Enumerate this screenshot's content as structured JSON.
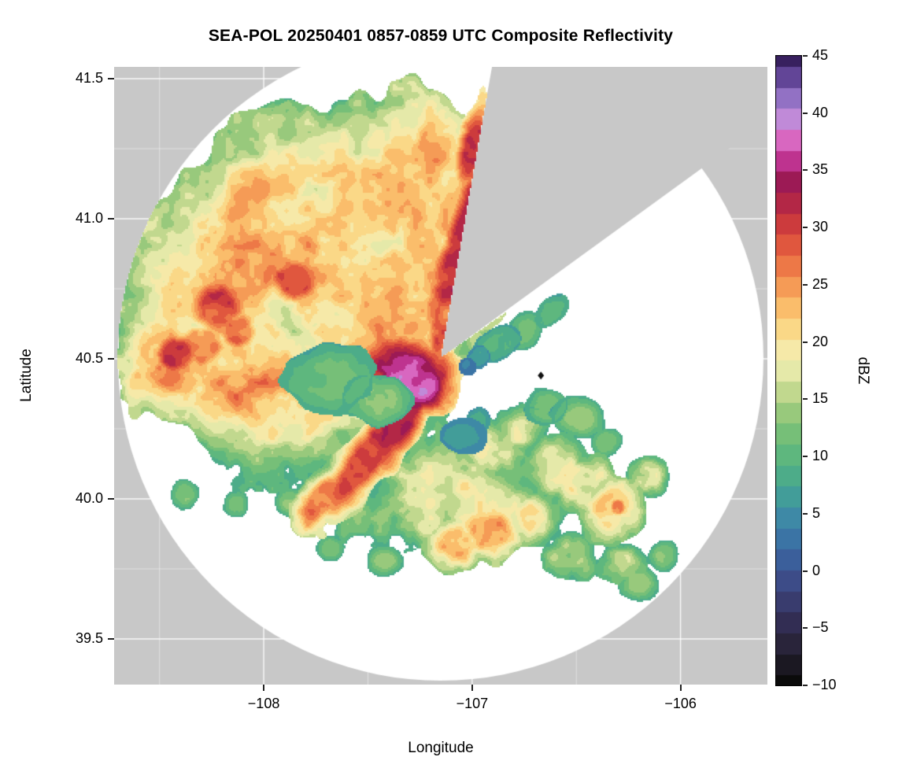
{
  "figure": {
    "title": "SEA-POL 20250401 0857-0859 UTC Composite Reflectivity",
    "background": "#ffffff"
  },
  "axes": {
    "x": {
      "label": "Longitude",
      "ticks": [
        {
          "value": -108,
          "label": "−108"
        },
        {
          "value": -107,
          "label": "−107"
        },
        {
          "value": -106,
          "label": "−106"
        }
      ]
    },
    "y": {
      "label": "Latitude",
      "ticks": [
        {
          "value": 41.5,
          "label": "41.5"
        },
        {
          "value": 41.0,
          "label": "41.0"
        },
        {
          "value": 40.5,
          "label": "40.5"
        },
        {
          "value": 40.0,
          "label": "40.0"
        },
        {
          "value": 39.5,
          "label": "39.5"
        }
      ]
    }
  },
  "colorbar": {
    "label": "dBZ",
    "min": -10,
    "max": 45,
    "ticks": [
      {
        "value": 45,
        "label": "45"
      },
      {
        "value": 40,
        "label": "40"
      },
      {
        "value": 35,
        "label": "35"
      },
      {
        "value": 30,
        "label": "30"
      },
      {
        "value": 25,
        "label": "25"
      },
      {
        "value": 20,
        "label": "20"
      },
      {
        "value": 15,
        "label": "15"
      },
      {
        "value": 10,
        "label": "10"
      },
      {
        "value": 5,
        "label": "5"
      },
      {
        "value": 0,
        "label": "0"
      },
      {
        "value": -5,
        "label": "−5"
      },
      {
        "value": -10,
        "label": "−10"
      }
    ]
  },
  "chart_data": {
    "type": "heatmap",
    "title": "SEA-POL 20250401 0857-0859 UTC Composite Reflectivity",
    "xlabel": "Longitude",
    "ylabel": "Latitude",
    "units": "dBZ",
    "xlim": [
      -108.718,
      -105.583
    ],
    "ylim": [
      39.337,
      41.542
    ],
    "panel_bg": "#c8c8c8",
    "nodata_color": "#ffffff",
    "grid": {
      "major_color": "#ffffff",
      "minor_color": "#ffffff"
    },
    "radar": {
      "center_lon": -107.151,
      "center_lat": 40.503,
      "radius_deg_lat": 1.152,
      "blocked_sector_azimuth_deg": [
        10,
        55
      ]
    },
    "colormap": {
      "units": "dBZ",
      "quantize_step": 1.8333,
      "stops": [
        [
          -10,
          "#0b0b0b"
        ],
        [
          -7,
          "#262131"
        ],
        [
          -4,
          "#35305a"
        ],
        [
          -1,
          "#3d4a86"
        ],
        [
          2,
          "#3a6aa5"
        ],
        [
          5,
          "#3e8da6"
        ],
        [
          7,
          "#44a394"
        ],
        [
          9,
          "#52b184"
        ],
        [
          11,
          "#66bb79"
        ],
        [
          13,
          "#86c377"
        ],
        [
          15,
          "#b2d184"
        ],
        [
          17,
          "#dfe6a2"
        ],
        [
          18.5,
          "#f2efb6"
        ],
        [
          20,
          "#f9e49c"
        ],
        [
          22,
          "#fbcf78"
        ],
        [
          24,
          "#f8ab5e"
        ],
        [
          26,
          "#f1854b"
        ],
        [
          28,
          "#e55f3e"
        ],
        [
          30,
          "#d03f3c"
        ],
        [
          32,
          "#b52845"
        ],
        [
          34,
          "#9c1a55"
        ],
        [
          35.5,
          "#b62b85"
        ],
        [
          37,
          "#d94fb0"
        ],
        [
          38,
          "#d773c8"
        ],
        [
          39.5,
          "#c08ad8"
        ],
        [
          41,
          "#9b79cb"
        ],
        [
          42.5,
          "#7457ab"
        ],
        [
          44,
          "#4b2f7f"
        ],
        [
          45,
          "#38205f"
        ]
      ]
    },
    "cell_format": "[lon, lat, sigma_lon_deg, sigma_lat_deg, rotation_deg, peak_dbz, edge_cut(optional; >=0.4 marks low/carve cell)]",
    "cells": [
      [
        -108.25,
        40.72,
        0.3,
        0.26,
        0,
        23
      ],
      [
        -107.95,
        40.95,
        0.34,
        0.26,
        30,
        22
      ],
      [
        -107.55,
        41.05,
        0.3,
        0.24,
        20,
        22
      ],
      [
        -107.3,
        41.15,
        0.22,
        0.2,
        0,
        23
      ],
      [
        -107.15,
        40.9,
        0.2,
        0.28,
        0,
        24
      ],
      [
        -107.6,
        40.7,
        0.33,
        0.26,
        0,
        21
      ],
      [
        -108.1,
        40.5,
        0.28,
        0.2,
        0,
        23
      ],
      [
        -108.45,
        40.5,
        0.17,
        0.13,
        0,
        25
      ],
      [
        -107.9,
        40.32,
        0.28,
        0.18,
        0,
        19
      ],
      [
        -107.5,
        40.45,
        0.28,
        0.2,
        0,
        18
      ],
      [
        -107.35,
        40.72,
        0.24,
        0.2,
        0,
        24
      ],
      [
        -108.0,
        41.12,
        0.17,
        0.11,
        25,
        18
      ],
      [
        -108.35,
        40.9,
        0.14,
        0.1,
        0,
        17
      ],
      [
        -107.04,
        40.92,
        0.32,
        0.075,
        65,
        33
      ],
      [
        -106.93,
        41.1,
        0.06,
        0.045,
        0,
        36
      ],
      [
        -106.98,
        40.97,
        0.05,
        0.04,
        0,
        35
      ],
      [
        -107.12,
        40.68,
        0.2,
        0.06,
        70,
        31
      ],
      [
        -107.28,
        40.44,
        0.1,
        0.16,
        80,
        37
      ],
      [
        -107.33,
        40.3,
        0.22,
        0.07,
        50,
        32
      ],
      [
        -107.52,
        40.13,
        0.22,
        0.07,
        42,
        30
      ],
      [
        -107.72,
        40.0,
        0.12,
        0.06,
        40,
        26
      ],
      [
        -108.22,
        40.68,
        0.11,
        0.08,
        0,
        31
      ],
      [
        -108.42,
        40.52,
        0.09,
        0.06,
        0,
        31
      ],
      [
        -108.12,
        40.6,
        0.08,
        0.06,
        0,
        29
      ],
      [
        -108.3,
        40.55,
        0.1,
        0.07,
        0,
        28
      ],
      [
        -107.85,
        40.78,
        0.1,
        0.07,
        0,
        27
      ],
      [
        -107.0,
        41.25,
        0.12,
        0.05,
        70,
        30
      ],
      [
        -107.95,
        41.32,
        0.1,
        0.06,
        20,
        15
      ],
      [
        -107.7,
        41.28,
        0.12,
        0.07,
        10,
        15
      ],
      [
        -107.62,
        41.38,
        0.05,
        0.035,
        0,
        13
      ],
      [
        -107.4,
        41.3,
        0.08,
        0.05,
        0,
        14
      ],
      [
        -107.68,
        40.43,
        0.16,
        0.09,
        0,
        11,
        0.4
      ],
      [
        -107.45,
        40.35,
        0.12,
        0.07,
        0,
        12,
        0.4
      ],
      [
        -107.04,
        40.22,
        0.09,
        0.055,
        0,
        6,
        0.45
      ],
      [
        -106.97,
        40.28,
        0.05,
        0.04,
        0,
        8,
        0.5
      ],
      [
        -106.88,
        40.55,
        0.1,
        0.05,
        20,
        9,
        0.45
      ],
      [
        -106.75,
        40.6,
        0.08,
        0.05,
        25,
        11,
        0.45
      ],
      [
        -106.62,
        40.67,
        0.07,
        0.04,
        30,
        10,
        0.45
      ],
      [
        -106.97,
        40.5,
        0.05,
        0.035,
        0,
        7,
        0.5
      ],
      [
        -107.02,
        40.47,
        0.04,
        0.03,
        0,
        4,
        0.55
      ],
      [
        -107.15,
        40.05,
        0.25,
        0.12,
        10,
        16
      ],
      [
        -106.95,
        40.0,
        0.2,
        0.1,
        0,
        17
      ],
      [
        -107.35,
        39.95,
        0.15,
        0.08,
        0,
        15
      ],
      [
        -106.9,
        40.18,
        0.12,
        0.07,
        0,
        19
      ],
      [
        -106.78,
        40.24,
        0.1,
        0.06,
        0,
        18
      ],
      [
        -106.6,
        40.12,
        0.11,
        0.08,
        0,
        20
      ],
      [
        -106.47,
        40.06,
        0.1,
        0.07,
        0,
        21
      ],
      [
        -106.33,
        39.96,
        0.1,
        0.08,
        0,
        24
      ],
      [
        -106.3,
        39.97,
        0.035,
        0.03,
        0,
        29
      ],
      [
        -106.7,
        39.93,
        0.1,
        0.07,
        0,
        18
      ],
      [
        -106.92,
        39.88,
        0.11,
        0.07,
        0,
        21
      ],
      [
        -107.08,
        39.84,
        0.1,
        0.06,
        0,
        21
      ],
      [
        -107.22,
        39.92,
        0.08,
        0.06,
        0,
        16
      ],
      [
        -106.53,
        39.8,
        0.09,
        0.06,
        0,
        16
      ],
      [
        -106.3,
        39.78,
        0.08,
        0.05,
        0,
        14
      ],
      [
        -106.16,
        40.08,
        0.07,
        0.05,
        0,
        15
      ],
      [
        -106.48,
        40.28,
        0.09,
        0.05,
        0,
        13
      ],
      [
        -106.65,
        40.33,
        0.07,
        0.05,
        0,
        12,
        0.4
      ],
      [
        -106.36,
        40.2,
        0.06,
        0.04,
        0,
        12
      ],
      [
        -107.42,
        39.78,
        0.06,
        0.04,
        0,
        13
      ],
      [
        -107.55,
        39.92,
        0.07,
        0.05,
        0,
        14
      ],
      [
        -107.68,
        39.82,
        0.05,
        0.035,
        0,
        12
      ],
      [
        -106.2,
        39.7,
        0.06,
        0.04,
        0,
        13
      ],
      [
        -106.08,
        39.8,
        0.05,
        0.04,
        0,
        13
      ],
      [
        -108.13,
        39.98,
        0.05,
        0.04,
        0,
        12
      ],
      [
        -108.38,
        40.02,
        0.05,
        0.04,
        0,
        12
      ],
      [
        -107.87,
        39.99,
        0.06,
        0.04,
        0,
        13
      ]
    ],
    "marker": {
      "lon": -106.67,
      "lat": 40.44,
      "dbz": -8
    }
  }
}
